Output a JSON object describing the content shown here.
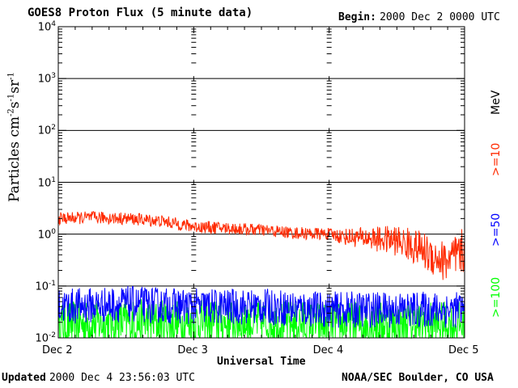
{
  "header": {
    "title": "GOES8 Proton Flux (5 minute data)",
    "begin_label": "Begin:",
    "begin_value": "2000 Dec 2 0000 UTC"
  },
  "footer": {
    "updated_label": "Updated",
    "updated_value": "2000 Dec  4 23:56:03 UTC",
    "credit": "NOAA/SEC Boulder, CO USA"
  },
  "colors": {
    "ge10": "#ff2a00",
    "ge50": "#0000ff",
    "ge100": "#00ff00",
    "grid": "#000000"
  },
  "chart_data": {
    "type": "line",
    "title": "GOES8 Proton Flux (5 minute data)",
    "xlabel": "Universal Time",
    "ylabel_parts": {
      "base": "Particles cm",
      "exp1": "-2",
      "s": "s",
      "exp2": "-1",
      "sr": "sr",
      "exp3": "-1"
    },
    "yscale": "log",
    "ylim_exp": [
      -2,
      4
    ],
    "y_ticks": [
      {
        "base": "10",
        "exp": "-2"
      },
      {
        "base": "10",
        "exp": "-1"
      },
      {
        "base": "10",
        "exp": "0"
      },
      {
        "base": "10",
        "exp": "1"
      },
      {
        "base": "10",
        "exp": "2"
      },
      {
        "base": "10",
        "exp": "3"
      },
      {
        "base": "10",
        "exp": "4"
      }
    ],
    "x_ticks": [
      "Dec 2",
      "Dec 3",
      "Dec 4",
      "Dec 5"
    ],
    "xlim_days": [
      0,
      3
    ],
    "legend": {
      "unit": "MeV",
      "ge10": ">=10",
      "ge50": ">=50",
      "ge100": ">=100"
    },
    "series": [
      {
        "name": ">=10 MeV",
        "color": "#ff2a00",
        "points": [
          [
            0.0,
            2.0
          ],
          [
            0.25,
            2.1
          ],
          [
            0.5,
            2.0
          ],
          [
            0.75,
            1.8
          ],
          [
            1.0,
            1.4
          ],
          [
            1.25,
            1.3
          ],
          [
            1.5,
            1.2
          ],
          [
            1.75,
            1.05
          ],
          [
            2.0,
            1.0
          ],
          [
            2.1,
            0.9
          ],
          [
            2.25,
            0.85
          ],
          [
            2.5,
            0.75
          ],
          [
            2.65,
            0.55
          ],
          [
            2.75,
            0.4
          ],
          [
            2.85,
            0.3
          ],
          [
            2.95,
            0.35
          ],
          [
            3.0,
            0.5
          ]
        ]
      },
      {
        "name": ">=50 MeV",
        "color": "#0000ff",
        "points": [
          [
            0.0,
            0.04
          ],
          [
            0.5,
            0.045
          ],
          [
            1.0,
            0.04
          ],
          [
            1.5,
            0.04
          ],
          [
            2.0,
            0.035
          ],
          [
            2.5,
            0.035
          ],
          [
            3.0,
            0.035
          ]
        ]
      },
      {
        "name": ">=100 MeV",
        "color": "#00ff00",
        "points": [
          [
            0.0,
            0.018
          ],
          [
            0.5,
            0.02
          ],
          [
            1.0,
            0.02
          ],
          [
            1.5,
            0.02
          ],
          [
            2.0,
            0.018
          ],
          [
            2.5,
            0.018
          ],
          [
            3.0,
            0.018
          ]
        ]
      }
    ]
  }
}
